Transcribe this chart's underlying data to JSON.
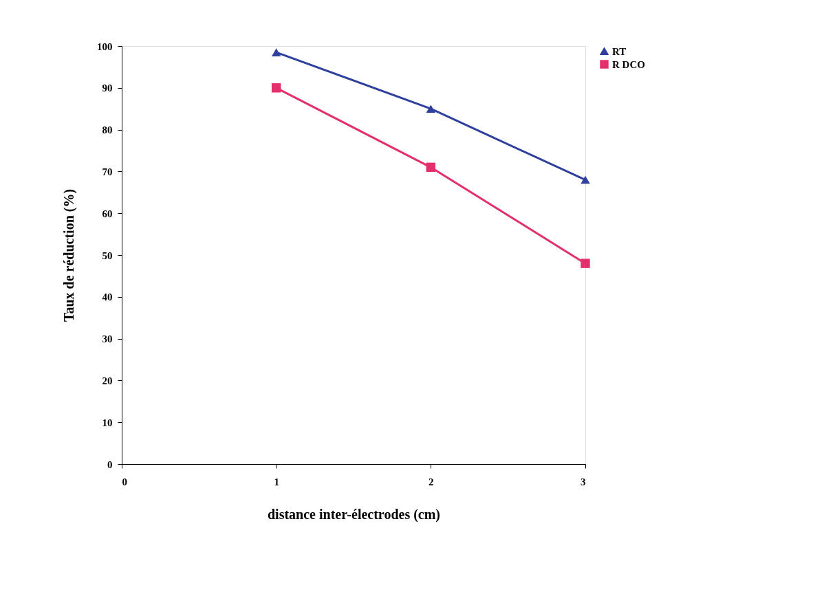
{
  "chart_data": {
    "type": "line",
    "xlabel": "distance inter-électrodes  (cm)",
    "ylabel": "Taux de réduction (%)",
    "x": [
      1,
      2,
      3
    ],
    "xlim": [
      0,
      3
    ],
    "xticks": [
      0,
      1,
      2,
      3
    ],
    "ylim": [
      0,
      100
    ],
    "yticks": [
      0,
      10,
      20,
      30,
      40,
      50,
      60,
      70,
      80,
      90,
      100
    ],
    "grid": false,
    "legend": "right",
    "line_style": "solid",
    "series": [
      {
        "name": "RT",
        "color": "#2e3f9e",
        "marker": "triangle",
        "values": [
          98.5,
          85,
          68
        ]
      },
      {
        "name": "R DCO",
        "color": "#e3306b",
        "marker": "square",
        "values": [
          90,
          71,
          48
        ]
      }
    ]
  }
}
